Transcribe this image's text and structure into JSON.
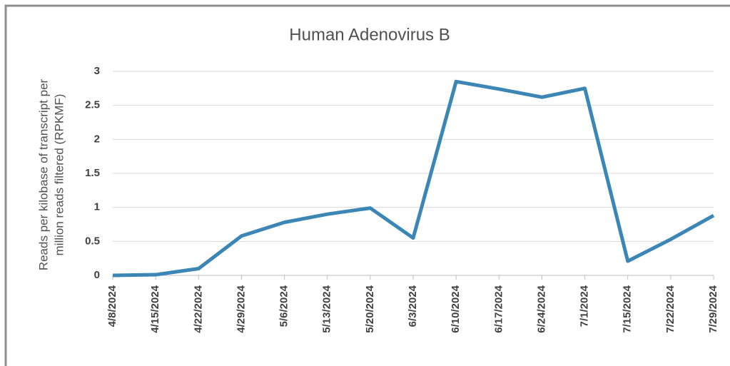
{
  "chart_data": {
    "type": "line",
    "title": "Human Adenovirus B",
    "ylabel": [
      "Reads per kilobase of transcript per",
      "million reads filtered (RPKMF)"
    ],
    "categories": [
      "4/8/2024",
      "4/15/2024",
      "4/22/2024",
      "4/29/2024",
      "5/6/2024",
      "5/13/2024",
      "5/20/2024",
      "6/3/2024",
      "6/10/2024",
      "6/17/2024",
      "6/24/2024",
      "7/1/2024",
      "7/15/2024",
      "7/22/2024",
      "7/29/2024"
    ],
    "series": [
      {
        "color": "#3b86b5",
        "values": [
          0,
          0.01,
          0.1,
          0.58,
          0.78,
          0.9,
          0.99,
          0.55,
          2.85,
          2.74,
          2.62,
          2.75,
          0.21,
          0.53,
          0.88
        ]
      }
    ],
    "ylim": [
      0,
      3
    ],
    "yticks": [
      0,
      0.5,
      1,
      1.5,
      2,
      2.5,
      3
    ],
    "grid": true
  }
}
